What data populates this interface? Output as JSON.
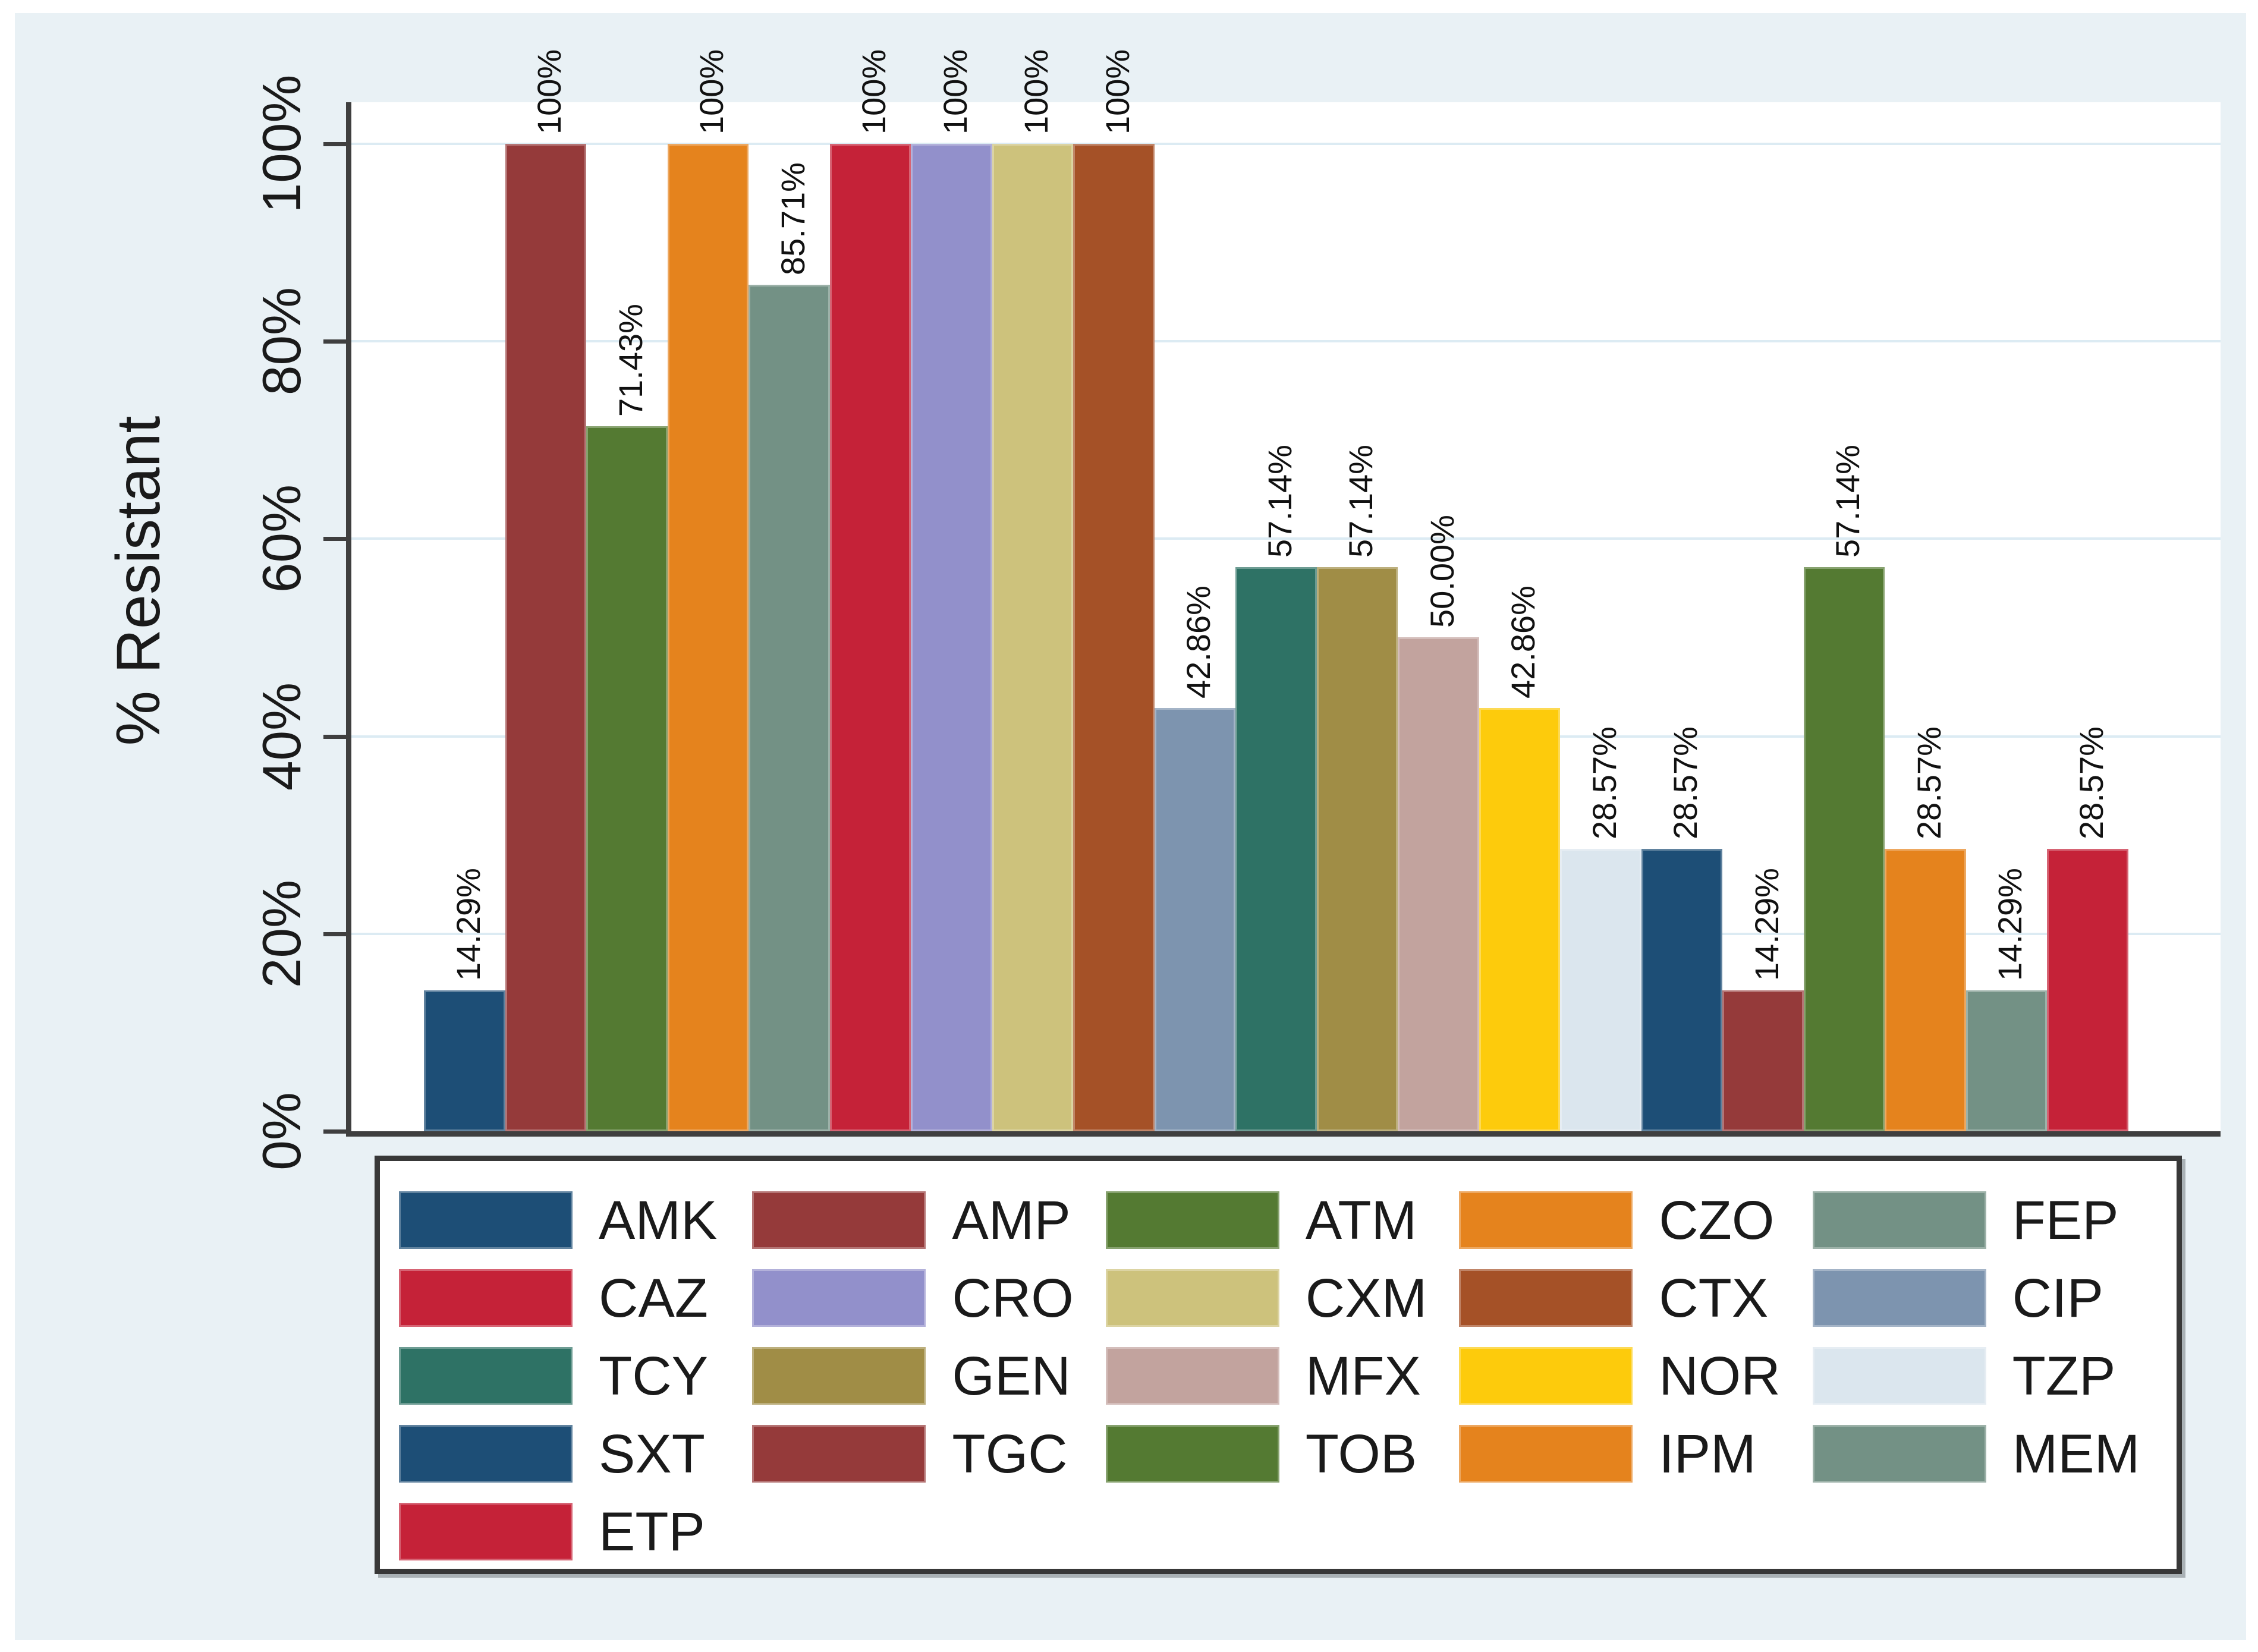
{
  "chart_data": {
    "type": "bar",
    "title": "",
    "xlabel": "",
    "ylabel": "% Resistant",
    "ylim": [
      0,
      100
    ],
    "grid": true,
    "legend_position": "bottom",
    "yticks": [
      {
        "value": 0,
        "label": "0%"
      },
      {
        "value": 20,
        "label": "20%"
      },
      {
        "value": 40,
        "label": "40%"
      },
      {
        "value": 60,
        "label": "60%"
      },
      {
        "value": 80,
        "label": "80%"
      },
      {
        "value": 100,
        "label": "100%"
      }
    ],
    "categories": [
      "AMK",
      "AMP",
      "ATM",
      "CZO",
      "FEP",
      "CAZ",
      "CRO",
      "CXM",
      "CTX",
      "CIP",
      "TCY",
      "GEN",
      "MFX",
      "NOR",
      "TZP",
      "SXT",
      "TGC",
      "TOB",
      "IPM",
      "MEM",
      "ETP"
    ],
    "bars": [
      {
        "category": "AMK",
        "value": 14.29,
        "value_label": "14.29%",
        "color": "#1d4e76"
      },
      {
        "category": "AMP",
        "value": 100,
        "value_label": "100%",
        "color": "#953a3a"
      },
      {
        "category": "ATM",
        "value": 71.43,
        "value_label": "71.43%",
        "color": "#547a32"
      },
      {
        "category": "CZO",
        "value": 100,
        "value_label": "100%",
        "color": "#e5831d"
      },
      {
        "category": "FEP",
        "value": 85.71,
        "value_label": "85.71%",
        "color": "#739185"
      },
      {
        "category": "CAZ",
        "value": 100,
        "value_label": "100%",
        "color": "#c52238"
      },
      {
        "category": "CRO",
        "value": 100,
        "value_label": "100%",
        "color": "#9290cb"
      },
      {
        "category": "CXM",
        "value": 100,
        "value_label": "100%",
        "color": "#cdc27c"
      },
      {
        "category": "CTX",
        "value": 100,
        "value_label": "100%",
        "color": "#a55127"
      },
      {
        "category": "CIP",
        "value": 42.86,
        "value_label": "42.86%",
        "color": "#7d94af"
      },
      {
        "category": "TCY",
        "value": 57.14,
        "value_label": "57.14%",
        "color": "#2e7265"
      },
      {
        "category": "GEN",
        "value": 57.14,
        "value_label": "57.14%",
        "color": "#a08d46"
      },
      {
        "category": "MFX",
        "value": 50.0,
        "value_label": "50.00%",
        "color": "#c2a39e"
      },
      {
        "category": "NOR",
        "value": 42.86,
        "value_label": "42.86%",
        "color": "#fdcb0c"
      },
      {
        "category": "TZP",
        "value": 28.57,
        "value_label": "28.57%",
        "color": "#dbe6ee"
      },
      {
        "category": "SXT",
        "value": 28.57,
        "value_label": "28.57%",
        "color": "#1d4e76"
      },
      {
        "category": "TGC",
        "value": 14.29,
        "value_label": "14.29%",
        "color": "#953a3a"
      },
      {
        "category": "TOB",
        "value": 57.14,
        "value_label": "57.14%",
        "color": "#547a32"
      },
      {
        "category": "IPM",
        "value": 28.57,
        "value_label": "28.57%",
        "color": "#e5831d"
      },
      {
        "category": "MEM",
        "value": 14.29,
        "value_label": "14.29%",
        "color": "#739185"
      },
      {
        "category": "ETP",
        "value": 28.57,
        "value_label": "28.57%",
        "color": "#c52238"
      }
    ]
  },
  "legend": {
    "columns": 5,
    "items": [
      {
        "label": "AMK",
        "color": "#1d4e76"
      },
      {
        "label": "AMP",
        "color": "#953a3a"
      },
      {
        "label": "ATM",
        "color": "#547a32"
      },
      {
        "label": "CZO",
        "color": "#e5831d"
      },
      {
        "label": "FEP",
        "color": "#739185"
      },
      {
        "label": "CAZ",
        "color": "#c52238"
      },
      {
        "label": "CRO",
        "color": "#9290cb"
      },
      {
        "label": "CXM",
        "color": "#cdc27c"
      },
      {
        "label": "CTX",
        "color": "#a55127"
      },
      {
        "label": "CIP",
        "color": "#7d94af"
      },
      {
        "label": "TCY",
        "color": "#2e7265"
      },
      {
        "label": "GEN",
        "color": "#a08d46"
      },
      {
        "label": "MFX",
        "color": "#c2a39e"
      },
      {
        "label": "NOR",
        "color": "#fdcb0c"
      },
      {
        "label": "TZP",
        "color": "#dbe6ee"
      },
      {
        "label": "SXT",
        "color": "#1d4e76"
      },
      {
        "label": "TGC",
        "color": "#953a3a"
      },
      {
        "label": "TOB",
        "color": "#547a32"
      },
      {
        "label": "IPM",
        "color": "#e5831d"
      },
      {
        "label": "MEM",
        "color": "#739185"
      },
      {
        "label": "ETP",
        "color": "#c52238"
      }
    ]
  },
  "colors": {
    "page_bg": "#ffffff",
    "graph_bg": "#e9f1f5",
    "plot_bg": "#ffffff",
    "gridline": "#dcebf3",
    "axis": "#3f3f3f",
    "text": "#1a1a1a",
    "legend_border": "#383838",
    "legend_bg": "#ffffff"
  }
}
